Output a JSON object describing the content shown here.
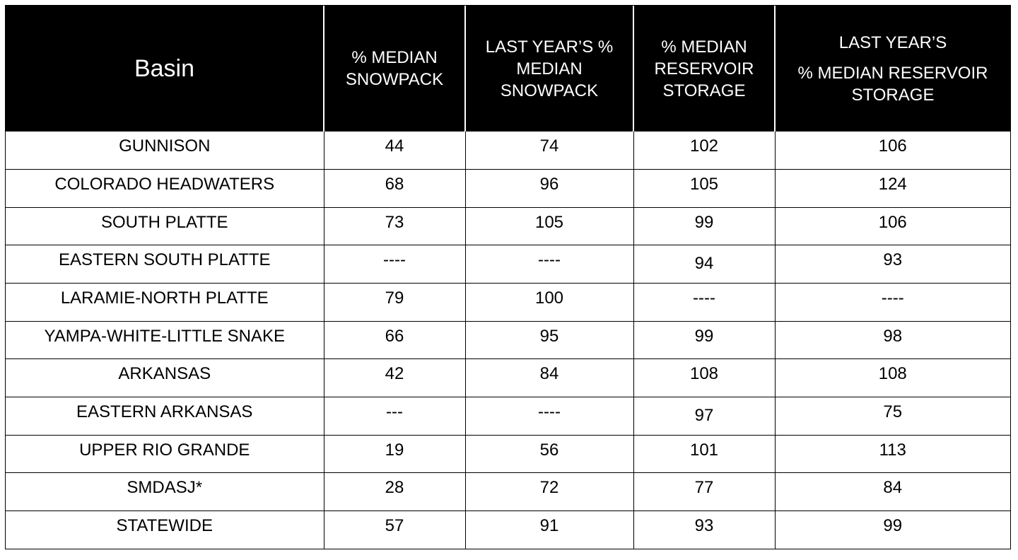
{
  "table": {
    "headers": {
      "basin": "Basin",
      "median_snowpack": [
        "% MEDIAN",
        "SNOWPACK"
      ],
      "last_year_snowpack": [
        "LAST YEAR’S %",
        "MEDIAN",
        "SNOWPACK"
      ],
      "median_reservoir": [
        "% MEDIAN",
        "RESERVOIR",
        "STORAGE"
      ],
      "last_year_reservoir": [
        "LAST YEAR’S",
        "% MEDIAN RESERVOIR",
        "STORAGE"
      ]
    },
    "rows": [
      {
        "basin": "GUNNISON",
        "median_snowpack": "44",
        "last_year_snowpack": "74",
        "median_reservoir": "102",
        "last_year_reservoir": "106"
      },
      {
        "basin": "COLORADO HEADWATERS",
        "median_snowpack": "68",
        "last_year_snowpack": "96",
        "median_reservoir": "105",
        "last_year_reservoir": "124"
      },
      {
        "basin": "SOUTH PLATTE",
        "median_snowpack": "73",
        "last_year_snowpack": "105",
        "median_reservoir": "99",
        "last_year_reservoir": "106"
      },
      {
        "basin": "EASTERN SOUTH PLATTE",
        "median_snowpack": "----",
        "last_year_snowpack": "----",
        "median_reservoir": "94",
        "last_year_reservoir": "93"
      },
      {
        "basin": "LARAMIE-NORTH PLATTE",
        "median_snowpack": "79",
        "last_year_snowpack": "100",
        "median_reservoir": "----",
        "last_year_reservoir": "----"
      },
      {
        "basin": "YAMPA-WHITE-LITTLE SNAKE",
        "median_snowpack": "66",
        "last_year_snowpack": "95",
        "median_reservoir": "99",
        "last_year_reservoir": "98"
      },
      {
        "basin": "ARKANSAS",
        "median_snowpack": "42",
        "last_year_snowpack": "84",
        "median_reservoir": "108",
        "last_year_reservoir": "108"
      },
      {
        "basin": "EASTERN ARKANSAS",
        "median_snowpack": "---",
        "last_year_snowpack": "----",
        "median_reservoir": "97",
        "last_year_reservoir": "75"
      },
      {
        "basin": "UPPER RIO GRANDE",
        "median_snowpack": "19",
        "last_year_snowpack": "56",
        "median_reservoir": "101",
        "last_year_reservoir": "113"
      },
      {
        "basin": "SMDASJ*",
        "median_snowpack": "28",
        "last_year_snowpack": "72",
        "median_reservoir": "77",
        "last_year_reservoir": "84"
      },
      {
        "basin": "STATEWIDE",
        "median_snowpack": "57",
        "last_year_snowpack": "91",
        "median_reservoir": "93",
        "last_year_reservoir": "99"
      }
    ]
  }
}
